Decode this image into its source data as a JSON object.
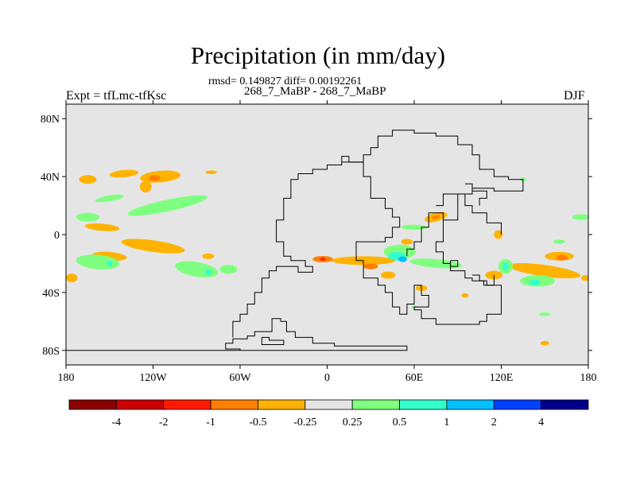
{
  "header": {
    "title": "Precipitation (in mm/day)",
    "stats": "rmsd= 0.149827 diff= 0.00192261",
    "subtitle": "268_7_MaBP - 268_7_MaBP",
    "left_label": "Expt = tfLmc-tfKsc",
    "right_label": "DJF"
  },
  "chart_data": {
    "type": "heatmap",
    "title": "Precipitation (in mm/day)",
    "units": "mm/day",
    "season": "DJF",
    "experiment": "tfLmc-tfKsc",
    "comparison": "268_7_MaBP - 268_7_MaBP",
    "statistics": {
      "rmsd": 0.149827,
      "diff": 0.00192261
    },
    "xlim": [
      -180,
      180
    ],
    "ylim": [
      -90,
      90
    ],
    "x_ticks": [
      {
        "value": -180,
        "label": "180"
      },
      {
        "value": -120,
        "label": "120W"
      },
      {
        "value": -60,
        "label": "60W"
      },
      {
        "value": 0,
        "label": "0"
      },
      {
        "value": 60,
        "label": "60E"
      },
      {
        "value": 120,
        "label": "120E"
      },
      {
        "value": 180,
        "label": "180"
      }
    ],
    "y_ticks": [
      {
        "value": 80,
        "label": "80N"
      },
      {
        "value": 40,
        "label": "40N"
      },
      {
        "value": 0,
        "label": "0"
      },
      {
        "value": -40,
        "label": "40S"
      },
      {
        "value": -80,
        "label": "80S"
      }
    ],
    "background_color": "#e5e5e5",
    "colorbar": {
      "colors": [
        "#8b0000",
        "#cc0000",
        "#ff1a00",
        "#ff7f00",
        "#ffb300",
        "#e5e5e5",
        "#7fff7f",
        "#33ffcc",
        "#00bfff",
        "#0040ff",
        "#00008b"
      ],
      "labels": [
        "-4",
        "-2",
        "-1",
        "-0.5",
        "-0.25",
        "0.25",
        "0.5",
        "1",
        "2",
        "4"
      ]
    },
    "coast_lines": [
      [
        [
          -180,
          -80
        ],
        [
          -60,
          -80
        ],
        [
          -60,
          -79
        ],
        [
          -70,
          -79
        ],
        [
          -70,
          -75
        ],
        [
          -65,
          -75
        ],
        [
          -65,
          -72
        ],
        [
          -55,
          -72
        ],
        [
          -55,
          -70
        ],
        [
          -50,
          -70
        ],
        [
          -50,
          -67
        ],
        [
          -38,
          -67
        ],
        [
          -38,
          -58
        ],
        [
          -32,
          -58
        ],
        [
          -32,
          -60
        ],
        [
          -28,
          -60
        ],
        [
          -28,
          -67
        ],
        [
          -22,
          -67
        ],
        [
          -22,
          -71
        ],
        [
          -10,
          -71
        ],
        [
          -10,
          -75
        ],
        [
          5,
          -75
        ],
        [
          5,
          -77
        ],
        [
          55,
          -77
        ],
        [
          55,
          -80
        ],
        [
          -180,
          -80
        ]
      ],
      [
        [
          -45,
          -71
        ],
        [
          -40,
          -71
        ],
        [
          -40,
          -73
        ],
        [
          -30,
          -73
        ],
        [
          -30,
          -76
        ],
        [
          -45,
          -76
        ],
        [
          -45,
          -71
        ]
      ],
      [
        [
          -65,
          -71
        ],
        [
          -65,
          -60
        ],
        [
          -60,
          -60
        ],
        [
          -60,
          -55
        ],
        [
          -55,
          -55
        ],
        [
          -55,
          -48
        ],
        [
          -50,
          -48
        ],
        [
          -50,
          -40
        ],
        [
          -45,
          -40
        ],
        [
          -45,
          -30
        ],
        [
          -40,
          -30
        ],
        [
          -40,
          -25
        ],
        [
          -35,
          -25
        ],
        [
          -35,
          -22
        ],
        [
          -20,
          -22
        ],
        [
          -20,
          -26
        ],
        [
          -10,
          -26
        ],
        [
          -10,
          -22
        ],
        [
          -15,
          -22
        ],
        [
          -15,
          -18
        ],
        [
          -25,
          -18
        ],
        [
          -25,
          -15
        ],
        [
          -30,
          -15
        ],
        [
          -30,
          -5
        ],
        [
          -35,
          -5
        ],
        [
          -35,
          10
        ],
        [
          -30,
          10
        ],
        [
          -30,
          25
        ],
        [
          -25,
          25
        ],
        [
          -25,
          38
        ],
        [
          -20,
          38
        ],
        [
          -20,
          42
        ],
        [
          -10,
          42
        ],
        [
          -10,
          45
        ],
        [
          0,
          45
        ],
        [
          0,
          48
        ],
        [
          10,
          48
        ],
        [
          10,
          54
        ],
        [
          15,
          54
        ],
        [
          15,
          50
        ],
        [
          25,
          50
        ],
        [
          25,
          40
        ],
        [
          30,
          40
        ],
        [
          30,
          25
        ],
        [
          40,
          25
        ],
        [
          40,
          18
        ],
        [
          45,
          18
        ],
        [
          45,
          12
        ],
        [
          50,
          12
        ],
        [
          50,
          5
        ],
        [
          45,
          5
        ],
        [
          45,
          -2
        ],
        [
          40,
          -2
        ],
        [
          40,
          -5
        ],
        [
          20,
          -5
        ],
        [
          20,
          -18
        ],
        [
          25,
          -18
        ],
        [
          25,
          -30
        ],
        [
          35,
          -30
        ],
        [
          35,
          -35
        ],
        [
          40,
          -35
        ],
        [
          40,
          -40
        ],
        [
          45,
          -40
        ],
        [
          45,
          -50
        ],
        [
          50,
          -50
        ],
        [
          50,
          -55
        ],
        [
          55,
          -55
        ],
        [
          55,
          -48
        ],
        [
          60,
          -48
        ],
        [
          60,
          -35
        ],
        [
          65,
          -35
        ],
        [
          65,
          -42
        ],
        [
          70,
          -42
        ],
        [
          70,
          -50
        ],
        [
          60,
          -50
        ],
        [
          60,
          -52
        ],
        [
          65,
          -52
        ],
        [
          65,
          -58
        ],
        [
          75,
          -58
        ],
        [
          75,
          -62
        ],
        [
          105,
          -62
        ],
        [
          105,
          -60
        ],
        [
          110,
          -60
        ],
        [
          110,
          -55
        ],
        [
          120,
          -55
        ],
        [
          120,
          -35
        ],
        [
          110,
          -35
        ],
        [
          110,
          -32
        ],
        [
          105,
          -32
        ],
        [
          105,
          -28
        ],
        [
          100,
          -28
        ]
      ],
      [
        [
          10,
          50
        ],
        [
          25,
          50
        ],
        [
          25,
          55
        ],
        [
          30,
          55
        ],
        [
          30,
          60
        ],
        [
          35,
          60
        ],
        [
          35,
          68
        ],
        [
          45,
          68
        ],
        [
          45,
          72
        ],
        [
          60,
          72
        ],
        [
          60,
          70
        ],
        [
          75,
          70
        ],
        [
          75,
          68
        ],
        [
          90,
          68
        ],
        [
          90,
          62
        ],
        [
          100,
          62
        ],
        [
          100,
          55
        ],
        [
          105,
          55
        ],
        [
          105,
          45
        ],
        [
          115,
          45
        ],
        [
          115,
          40
        ],
        [
          125,
          40
        ],
        [
          125,
          38
        ],
        [
          135,
          38
        ],
        [
          135,
          30
        ],
        [
          115,
          30
        ],
        [
          115,
          32
        ],
        [
          100,
          32
        ],
        [
          100,
          28
        ],
        [
          90,
          28
        ],
        [
          90,
          10
        ],
        [
          80,
          10
        ],
        [
          80,
          15
        ],
        [
          70,
          15
        ],
        [
          70,
          5
        ],
        [
          65,
          5
        ],
        [
          65,
          -5
        ],
        [
          60,
          -5
        ],
        [
          60,
          -10
        ],
        [
          55,
          -10
        ],
        [
          55,
          -15
        ]
      ],
      [
        [
          75,
          20
        ],
        [
          80,
          20
        ],
        [
          80,
          28
        ],
        [
          95,
          28
        ],
        [
          95,
          20
        ],
        [
          100,
          20
        ],
        [
          100,
          15
        ],
        [
          110,
          15
        ],
        [
          110,
          8
        ],
        [
          120,
          8
        ],
        [
          120,
          0
        ]
      ],
      [
        [
          80,
          10
        ],
        [
          80,
          -5
        ],
        [
          75,
          -5
        ],
        [
          75,
          -12
        ],
        [
          80,
          -12
        ],
        [
          80,
          -20
        ],
        [
          85,
          -20
        ],
        [
          85,
          -25
        ],
        [
          95,
          -25
        ],
        [
          95,
          -30
        ],
        [
          100,
          -30
        ],
        [
          100,
          -32
        ],
        [
          108,
          -32
        ],
        [
          108,
          -35
        ],
        [
          115,
          -35
        ],
        [
          115,
          -28
        ]
      ],
      [
        [
          85,
          -18
        ],
        [
          90,
          -18
        ],
        [
          90,
          -22
        ],
        [
          85,
          -22
        ],
        [
          85,
          -18
        ]
      ],
      [
        [
          95,
          35
        ],
        [
          100,
          35
        ],
        [
          100,
          30
        ],
        [
          110,
          30
        ],
        [
          110,
          25
        ],
        [
          105,
          25
        ],
        [
          105,
          20
        ]
      ]
    ],
    "precip_anomaly_regions": [
      {
        "color": "#ffb300",
        "lon": -165,
        "lat": 38,
        "rx": 6,
        "ry": 3,
        "rot": 0
      },
      {
        "color": "#ffb300",
        "lon": -140,
        "lat": 42,
        "rx": 10,
        "ry": 2.5,
        "rot": -5
      },
      {
        "color": "#ffb300",
        "lon": -115,
        "lat": 40,
        "rx": 14,
        "ry": 4,
        "rot": -5
      },
      {
        "color": "#ffb300",
        "lon": -125,
        "lat": 33,
        "rx": 4,
        "ry": 4,
        "rot": 0
      },
      {
        "color": "#ff7f00",
        "lon": -119,
        "lat": 39,
        "rx": 4,
        "ry": 2,
        "rot": 0
      },
      {
        "color": "#ffb300",
        "lon": -80,
        "lat": 43,
        "rx": 4,
        "ry": 1.2,
        "rot": 0
      },
      {
        "color": "#ffb300",
        "lon": -155,
        "lat": 5,
        "rx": 12,
        "ry": 2.5,
        "rot": 5
      },
      {
        "color": "#ffb300",
        "lon": -120,
        "lat": -8,
        "rx": 22,
        "ry": 4,
        "rot": 8
      },
      {
        "color": "#ffb300",
        "lon": -150,
        "lat": -15,
        "rx": 12,
        "ry": 3,
        "rot": 5
      },
      {
        "color": "#ffb300",
        "lon": -176,
        "lat": -30,
        "rx": 4,
        "ry": 3,
        "rot": 0
      },
      {
        "color": "#ffb300",
        "lon": -82,
        "lat": -15,
        "rx": 4,
        "ry": 2,
        "rot": 0
      },
      {
        "color": "#7fff7f",
        "lon": -150,
        "lat": 25,
        "rx": 10,
        "ry": 2,
        "rot": -10
      },
      {
        "color": "#7fff7f",
        "lon": -110,
        "lat": 20,
        "rx": 28,
        "ry": 4,
        "rot": -12
      },
      {
        "color": "#7fff7f",
        "lon": -165,
        "lat": 12,
        "rx": 8,
        "ry": 3,
        "rot": 0
      },
      {
        "color": "#7fff7f",
        "lon": -158,
        "lat": -19,
        "rx": 15,
        "ry": 5,
        "rot": 5
      },
      {
        "color": "#7fff7f",
        "lon": -90,
        "lat": -24,
        "rx": 15,
        "ry": 5,
        "rot": 10
      },
      {
        "color": "#7fff7f",
        "lon": -68,
        "lat": -24,
        "rx": 6,
        "ry": 3,
        "rot": 0
      },
      {
        "color": "#33ffcc",
        "lon": -150,
        "lat": -20,
        "rx": 2,
        "ry": 2,
        "rot": 0
      },
      {
        "color": "#33ffcc",
        "lon": -82,
        "lat": -26,
        "rx": 2,
        "ry": 2,
        "rot": 0
      },
      {
        "color": "#7fff7f",
        "lon": 60,
        "lat": 5,
        "rx": 9,
        "ry": 1.8,
        "rot": 0
      },
      {
        "color": "#ffb300",
        "lon": 25,
        "lat": -18,
        "rx": 22,
        "ry": 3,
        "rot": 0
      },
      {
        "color": "#ff7f00",
        "lon": -3,
        "lat": -17,
        "rx": 7,
        "ry": 2.2,
        "rot": 0
      },
      {
        "color": "#ff1a00",
        "lon": -3,
        "lat": -17,
        "rx": 2,
        "ry": 1,
        "rot": 0
      },
      {
        "color": "#7fff7f",
        "lon": 50,
        "lat": -12,
        "rx": 11,
        "ry": 5,
        "rot": 0
      },
      {
        "color": "#33ffcc",
        "lon": 48,
        "lat": -15,
        "rx": 6,
        "ry": 3,
        "rot": 0
      },
      {
        "color": "#00bfff",
        "lon": 52,
        "lat": -17,
        "rx": 3,
        "ry": 2,
        "rot": 0
      },
      {
        "color": "#7fff7f",
        "lon": 75,
        "lat": -20,
        "rx": 18,
        "ry": 3,
        "rot": 5
      },
      {
        "color": "#ffb300",
        "lon": 42,
        "lat": -28,
        "rx": 5,
        "ry": 2.5,
        "rot": 0
      },
      {
        "color": "#ffb300",
        "lon": 55,
        "lat": -5,
        "rx": 4,
        "ry": 2,
        "rot": 0
      },
      {
        "color": "#ffb300",
        "lon": 75,
        "lat": 12,
        "rx": 8,
        "ry": 3,
        "rot": -15
      },
      {
        "color": "#ff7f00",
        "lon": 75,
        "lat": 12,
        "rx": 3,
        "ry": 1.2,
        "rot": -15
      },
      {
        "color": "#ffb300",
        "lon": 65,
        "lat": -37,
        "rx": 4,
        "ry": 2,
        "rot": 0
      },
      {
        "color": "#ffb300",
        "lon": 115,
        "lat": -28,
        "rx": 6,
        "ry": 3,
        "rot": 0
      },
      {
        "color": "#ffb300",
        "lon": 150,
        "lat": -25,
        "rx": 25,
        "ry": 4,
        "rot": 8
      },
      {
        "color": "#ffb300",
        "lon": 160,
        "lat": -15,
        "rx": 10,
        "ry": 3,
        "rot": 0
      },
      {
        "color": "#ff7f00",
        "lon": 162,
        "lat": -16,
        "rx": 4,
        "ry": 2,
        "rot": 0
      },
      {
        "color": "#ffb300",
        "lon": 178,
        "lat": -30,
        "rx": 3,
        "ry": 2,
        "rot": 0
      },
      {
        "color": "#ffb300",
        "lon": 118,
        "lat": 0,
        "rx": 3,
        "ry": 3,
        "rot": 0
      },
      {
        "color": "#7fff7f",
        "lon": 145,
        "lat": -32,
        "rx": 12,
        "ry": 4,
        "rot": 0
      },
      {
        "color": "#33ffcc",
        "lon": 143,
        "lat": -33,
        "rx": 4,
        "ry": 2,
        "rot": 0
      },
      {
        "color": "#7fff7f",
        "lon": 123,
        "lat": -22,
        "rx": 5,
        "ry": 5,
        "rot": 0
      },
      {
        "color": "#33ffcc",
        "lon": 123,
        "lat": -22,
        "rx": 2,
        "ry": 3,
        "rot": 0
      },
      {
        "color": "#7fff7f",
        "lon": 175,
        "lat": 12,
        "rx": 6,
        "ry": 2,
        "rot": 0
      },
      {
        "color": "#7fff7f",
        "lon": 160,
        "lat": -5,
        "rx": 4,
        "ry": 1.5,
        "rot": 0
      },
      {
        "color": "#7fff7f",
        "lon": 135,
        "lat": 38,
        "rx": 2,
        "ry": 1.5,
        "rot": 0
      },
      {
        "color": "#7fff7f",
        "lon": 150,
        "lat": -55,
        "rx": 4,
        "ry": 1.2,
        "rot": 0
      },
      {
        "color": "#ffb300",
        "lon": 150,
        "lat": -75,
        "rx": 3,
        "ry": 1.5,
        "rot": 0
      },
      {
        "color": "#ffb300",
        "lon": 95,
        "lat": -42,
        "rx": 2.5,
        "ry": 1.5,
        "rot": 0
      },
      {
        "color": "#7fff7f",
        "lon": 60,
        "lat": -50,
        "rx": 2,
        "ry": 1,
        "rot": 0
      },
      {
        "color": "#ff7f00",
        "lon": 30,
        "lat": -22,
        "rx": 5,
        "ry": 2,
        "rot": 0
      }
    ]
  }
}
